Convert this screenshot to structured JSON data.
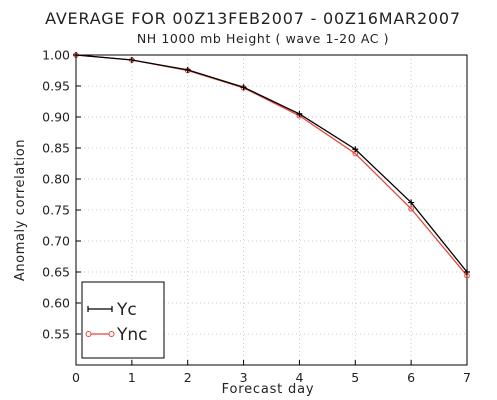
{
  "chart_data": {
    "type": "line",
    "title": "AVERAGE FOR 00Z13FEB2007 - 00Z16MAR2007",
    "subtitle": "NH 1000 mb Height ( wave 1-20 AC )",
    "xlabel": "Forecast day",
    "ylabel": "Anomaly correlation",
    "xlim": [
      0,
      7
    ],
    "ylim": [
      0.5,
      1.0
    ],
    "x_ticks": [
      "0",
      "1",
      "2",
      "3",
      "4",
      "5",
      "6",
      "7"
    ],
    "y_ticks": [
      "1.00",
      "0.95",
      "0.90",
      "0.85",
      "0.80",
      "0.75",
      "0.70",
      "0.65",
      "0.60",
      "0.55"
    ],
    "grid": true,
    "legend_position": "bottom-left",
    "x": [
      0,
      1,
      2,
      3,
      4,
      5,
      6,
      7
    ],
    "series": [
      {
        "name": "Yc",
        "color": "#000000",
        "marker": "plus",
        "values": [
          1.0,
          0.992,
          0.976,
          0.948,
          0.905,
          0.848,
          0.762,
          0.65
        ]
      },
      {
        "name": "Ync",
        "color": "#e8453c",
        "marker": "circle",
        "values": [
          1.0,
          0.992,
          0.975,
          0.947,
          0.902,
          0.841,
          0.752,
          0.644
        ]
      }
    ]
  }
}
